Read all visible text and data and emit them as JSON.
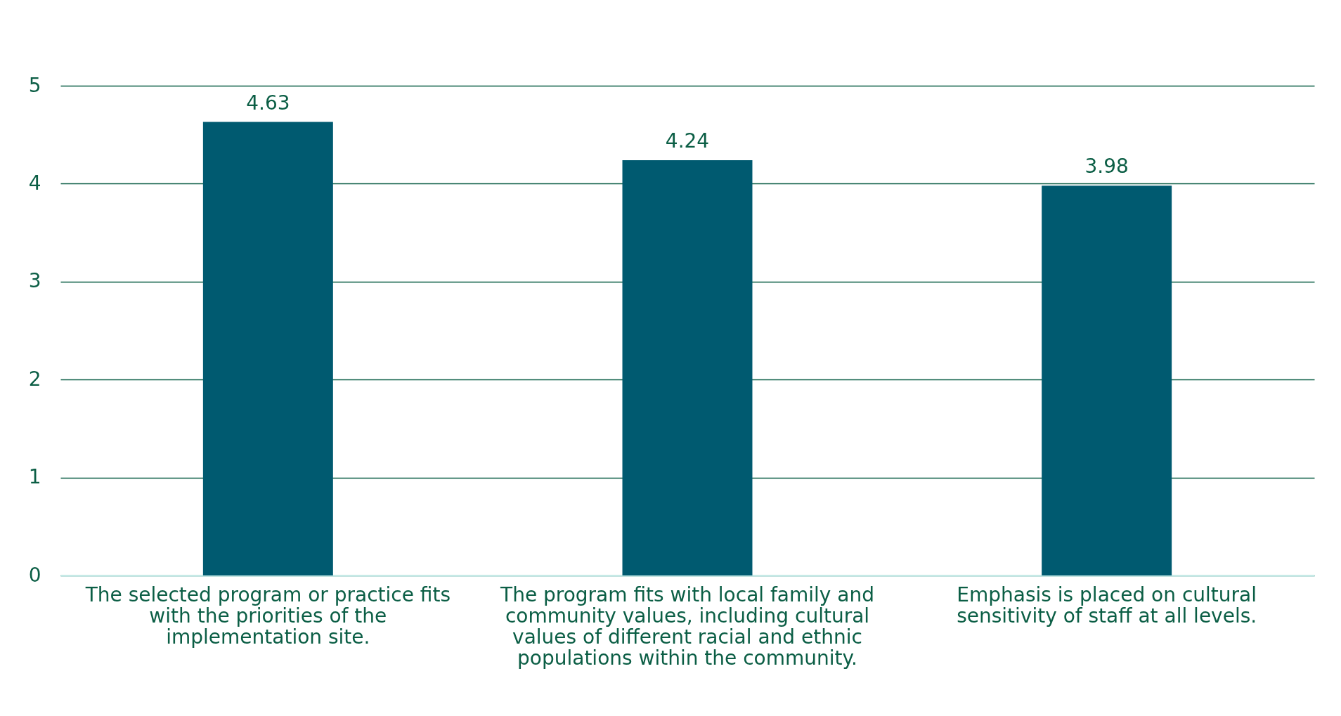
{
  "chart_data": {
    "type": "bar",
    "categories": [
      "The selected program or practice fits with the priorities of the implementation site.",
      "The program fits with local family and community values, including cultural values of different racial and ethnic populations within the community.",
      "Emphasis is placed on cultural sensitivity of staff at all levels."
    ],
    "values": [
      4.63,
      4.24,
      3.98
    ],
    "color": "#005a70",
    "ylim": [
      0,
      5
    ],
    "yticks": [
      0,
      1,
      2,
      3,
      4,
      5
    ],
    "grid": "y",
    "data_labels": true
  }
}
